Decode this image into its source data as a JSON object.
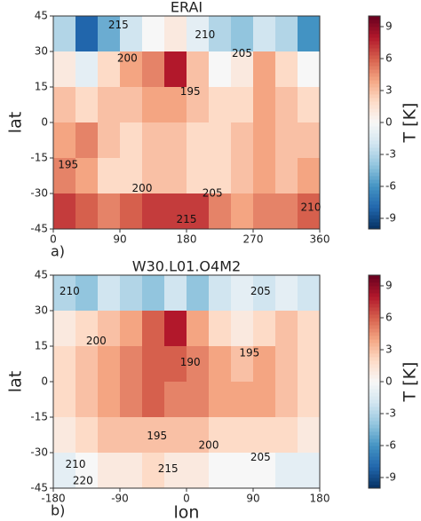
{
  "chart_data": [
    {
      "type": "heatmap",
      "title": "ERAI",
      "ylabel": "lat",
      "panel_label": "a)",
      "x": [
        15,
        45,
        75,
        105,
        135,
        165,
        195,
        225,
        255,
        285,
        315,
        345
      ],
      "y": [
        37.5,
        22.5,
        7.5,
        -7.5,
        -22.5,
        -37.5
      ],
      "z": [
        [
          -3,
          -8,
          -5,
          -2,
          0,
          1,
          -1,
          -3,
          -4,
          -2,
          -3,
          -6
        ],
        [
          1,
          -1,
          2,
          4,
          5,
          8,
          3,
          0,
          1,
          4,
          2,
          0
        ],
        [
          3,
          2,
          3,
          3,
          4,
          4,
          3,
          2,
          2,
          4,
          3,
          2
        ],
        [
          4,
          5,
          3,
          2,
          3,
          3,
          2,
          2,
          3,
          4,
          3,
          3
        ],
        [
          5,
          4,
          2,
          2,
          3,
          3,
          2,
          2,
          3,
          4,
          3,
          4
        ],
        [
          7,
          6,
          5,
          6,
          7,
          7,
          7,
          5,
          4,
          5,
          5,
          6
        ]
      ],
      "xlim": [
        0,
        360
      ],
      "xticks": [
        0,
        90,
        180,
        270,
        360
      ],
      "ylim": [
        -45,
        45
      ],
      "yticks": [
        -45,
        -30,
        -15,
        0,
        15,
        30,
        45
      ],
      "clim": [
        -10,
        10
      ],
      "cticks": [
        -9,
        -6,
        -3,
        0,
        3,
        6,
        9
      ],
      "colorbar_label": "T [K]",
      "colormap": [
        "#053061",
        "#2166ac",
        "#4393c3",
        "#92c5de",
        "#d1e5f0",
        "#f7f7f7",
        "#fddbc7",
        "#f4a582",
        "#d6604d",
        "#b2182b",
        "#67001f"
      ],
      "annotations": [
        {
          "text": "215",
          "x": 88,
          "y": 41
        },
        {
          "text": "210",
          "x": 205,
          "y": 37
        },
        {
          "text": "200",
          "x": 100,
          "y": 27
        },
        {
          "text": "205",
          "x": 255,
          "y": 29
        },
        {
          "text": "195",
          "x": 185,
          "y": 13
        },
        {
          "text": "195",
          "x": 20,
          "y": -18
        },
        {
          "text": "200",
          "x": 120,
          "y": -28
        },
        {
          "text": "205",
          "x": 215,
          "y": -30
        },
        {
          "text": "215",
          "x": 180,
          "y": -41
        },
        {
          "text": "210",
          "x": 348,
          "y": -36
        }
      ]
    },
    {
      "type": "heatmap",
      "title": "W30.L01.O4M2",
      "xlabel": "lon",
      "ylabel": "lat",
      "panel_label": "b)",
      "x": [
        -165,
        -135,
        -105,
        -75,
        -45,
        -15,
        15,
        45,
        75,
        105,
        135,
        165
      ],
      "y": [
        37.5,
        22.5,
        7.5,
        -7.5,
        -22.5,
        -37.5
      ],
      "z": [
        [
          -3,
          -4,
          -2,
          -3,
          -4,
          -2,
          -4,
          -2,
          -1,
          -2,
          -1,
          -2
        ],
        [
          1,
          2,
          3,
          4,
          6,
          8,
          4,
          2,
          1,
          2,
          3,
          2
        ],
        [
          2,
          3,
          4,
          5,
          6,
          6,
          5,
          4,
          3,
          4,
          3,
          2
        ],
        [
          2,
          3,
          4,
          5,
          6,
          5,
          5,
          4,
          4,
          4,
          3,
          2
        ],
        [
          1,
          2,
          3,
          3,
          3,
          3,
          3,
          2,
          2,
          2,
          2,
          1
        ],
        [
          -1,
          0,
          1,
          1,
          2,
          1,
          1,
          0,
          0,
          0,
          -1,
          -1
        ]
      ],
      "xlim": [
        -180,
        180
      ],
      "xticks": [
        -180,
        -90,
        0,
        90,
        180
      ],
      "ylim": [
        -45,
        45
      ],
      "yticks": [
        -45,
        -30,
        -15,
        0,
        15,
        30,
        45
      ],
      "clim": [
        -10,
        10
      ],
      "cticks": [
        -9,
        -6,
        -3,
        0,
        3,
        6,
        9
      ],
      "colorbar_label": "T [K]",
      "colormap": [
        "#053061",
        "#2166ac",
        "#4393c3",
        "#92c5de",
        "#d1e5f0",
        "#f7f7f7",
        "#fddbc7",
        "#f4a582",
        "#d6604d",
        "#b2182b",
        "#67001f"
      ],
      "annotations": [
        {
          "text": "210",
          "x": -158,
          "y": 38
        },
        {
          "text": "205",
          "x": 100,
          "y": 38
        },
        {
          "text": "200",
          "x": -122,
          "y": 17
        },
        {
          "text": "190",
          "x": 5,
          "y": 8
        },
        {
          "text": "195",
          "x": 85,
          "y": 12
        },
        {
          "text": "195",
          "x": -40,
          "y": -23
        },
        {
          "text": "200",
          "x": 30,
          "y": -27
        },
        {
          "text": "205",
          "x": 100,
          "y": -32
        },
        {
          "text": "210",
          "x": -150,
          "y": -35
        },
        {
          "text": "215",
          "x": -25,
          "y": -37
        },
        {
          "text": "220",
          "x": -140,
          "y": -42
        }
      ]
    }
  ]
}
